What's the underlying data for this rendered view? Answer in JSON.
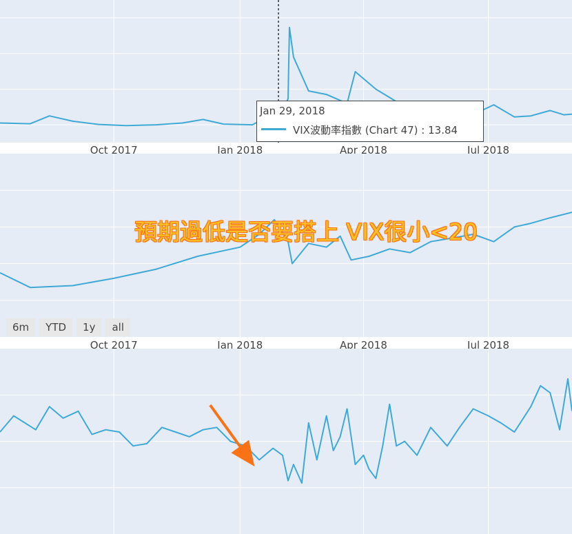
{
  "chart_data": [
    {
      "type": "line",
      "title": "",
      "x_ticks": [
        "Oct 2017",
        "Jan 2018",
        "Apr 2018",
        "Jul 2018"
      ],
      "series": [
        {
          "name": "VIX波動率指數 (Chart 47)",
          "color": "#3fa9d6",
          "x": [
            "2017-07-10",
            "2017-08-01",
            "2017-08-15",
            "2017-09-01",
            "2017-09-20",
            "2017-10-10",
            "2017-11-01",
            "2017-11-20",
            "2017-12-05",
            "2017-12-20",
            "2018-01-10",
            "2018-01-29",
            "2018-02-01",
            "2018-02-05",
            "2018-02-06",
            "2018-02-09",
            "2018-02-20",
            "2018-03-05",
            "2018-03-20",
            "2018-03-26",
            "2018-04-10",
            "2018-04-25",
            "2018-05-10",
            "2018-05-25",
            "2018-06-05",
            "2018-06-25",
            "2018-07-05",
            "2018-07-20",
            "2018-08-01",
            "2018-08-15",
            "2018-08-25",
            "2018-08-31"
          ],
          "values": [
            10.5,
            10.3,
            12.5,
            11.0,
            10.1,
            9.8,
            10.0,
            10.5,
            11.5,
            10.2,
            10.0,
            13.84,
            14.0,
            17.3,
            37.3,
            29.0,
            19.5,
            18.5,
            16.0,
            24.9,
            20.0,
            16.5,
            14.0,
            13.0,
            12.5,
            13.8,
            15.6,
            12.2,
            12.5,
            14.0,
            12.8,
            13.0
          ],
          "ylim": [
            5,
            45
          ]
        }
      ],
      "tooltip": {
        "date": "Jan 29, 2018",
        "series_label": "VIX波動率指數 (Chart 47)",
        "separator": " : ",
        "value": "13.84"
      }
    },
    {
      "type": "line",
      "title": "",
      "x_ticks": [
        "Oct 2017",
        "Jan 2018",
        "Apr 2018",
        "Jul 2018"
      ],
      "series": [
        {
          "name": "",
          "color": "#3fa9d6",
          "x": [
            "2017-07-10",
            "2017-08-01",
            "2017-09-01",
            "2017-10-01",
            "2017-11-01",
            "2017-12-01",
            "2018-01-01",
            "2018-01-15",
            "2018-01-26",
            "2018-02-05",
            "2018-02-08",
            "2018-02-20",
            "2018-03-05",
            "2018-03-15",
            "2018-03-23",
            "2018-04-05",
            "2018-04-20",
            "2018-05-05",
            "2018-05-20",
            "2018-06-05",
            "2018-06-20",
            "2018-07-05",
            "2018-07-20",
            "2018-08-01",
            "2018-08-15",
            "2018-08-31"
          ],
          "values": [
            2550,
            2470,
            2480,
            2520,
            2570,
            2640,
            2690,
            2760,
            2840,
            2720,
            2600,
            2710,
            2690,
            2750,
            2620,
            2640,
            2680,
            2660,
            2720,
            2740,
            2760,
            2720,
            2800,
            2820,
            2850,
            2880
          ],
          "ylim": [
            2200,
            3200
          ]
        }
      ],
      "range_selector": [
        "6m",
        "YTD",
        "1y",
        "all"
      ]
    },
    {
      "type": "line",
      "title": "",
      "x_ticks": [],
      "series": [
        {
          "name": "",
          "color": "#3fa9d6",
          "x": [
            "2017-07-10",
            "2017-07-20",
            "2017-08-05",
            "2017-08-15",
            "2017-08-25",
            "2017-09-05",
            "2017-09-15",
            "2017-09-25",
            "2017-10-05",
            "2017-10-15",
            "2017-10-25",
            "2017-11-05",
            "2017-11-15",
            "2017-11-25",
            "2017-12-05",
            "2017-12-15",
            "2017-12-25",
            "2018-01-05",
            "2018-01-15",
            "2018-01-25",
            "2018-02-01",
            "2018-02-05",
            "2018-02-09",
            "2018-02-15",
            "2018-02-20",
            "2018-02-26",
            "2018-03-05",
            "2018-03-10",
            "2018-03-15",
            "2018-03-20",
            "2018-03-26",
            "2018-04-01",
            "2018-04-05",
            "2018-04-10",
            "2018-04-15",
            "2018-04-20",
            "2018-04-25",
            "2018-05-01",
            "2018-05-10",
            "2018-05-20",
            "2018-06-01",
            "2018-06-10",
            "2018-06-20",
            "2018-07-01",
            "2018-07-10",
            "2018-07-20",
            "2018-08-01",
            "2018-08-08",
            "2018-08-15",
            "2018-08-22",
            "2018-08-28",
            "2018-08-31"
          ],
          "values": [
            0.0,
            0.35,
            0.05,
            0.55,
            0.3,
            0.45,
            -0.05,
            0.05,
            0.0,
            -0.3,
            -0.25,
            0.1,
            0.0,
            -0.1,
            0.05,
            0.1,
            -0.2,
            -0.3,
            -0.6,
            -0.35,
            -0.5,
            -1.05,
            -0.7,
            -1.1,
            0.2,
            -0.6,
            0.35,
            -0.4,
            -0.1,
            0.5,
            -0.7,
            -0.5,
            -0.8,
            -1.0,
            -0.3,
            0.6,
            -0.3,
            -0.2,
            -0.5,
            0.1,
            -0.3,
            0.1,
            0.5,
            0.35,
            0.2,
            0.0,
            0.55,
            1.0,
            0.85,
            0.05,
            1.15,
            0.45
          ],
          "ylim": [
            -2.2,
            1.8
          ]
        }
      ],
      "annotation": "預期過低是否要搭上 VIX很小<20",
      "arrow_color": "#f97316"
    }
  ]
}
